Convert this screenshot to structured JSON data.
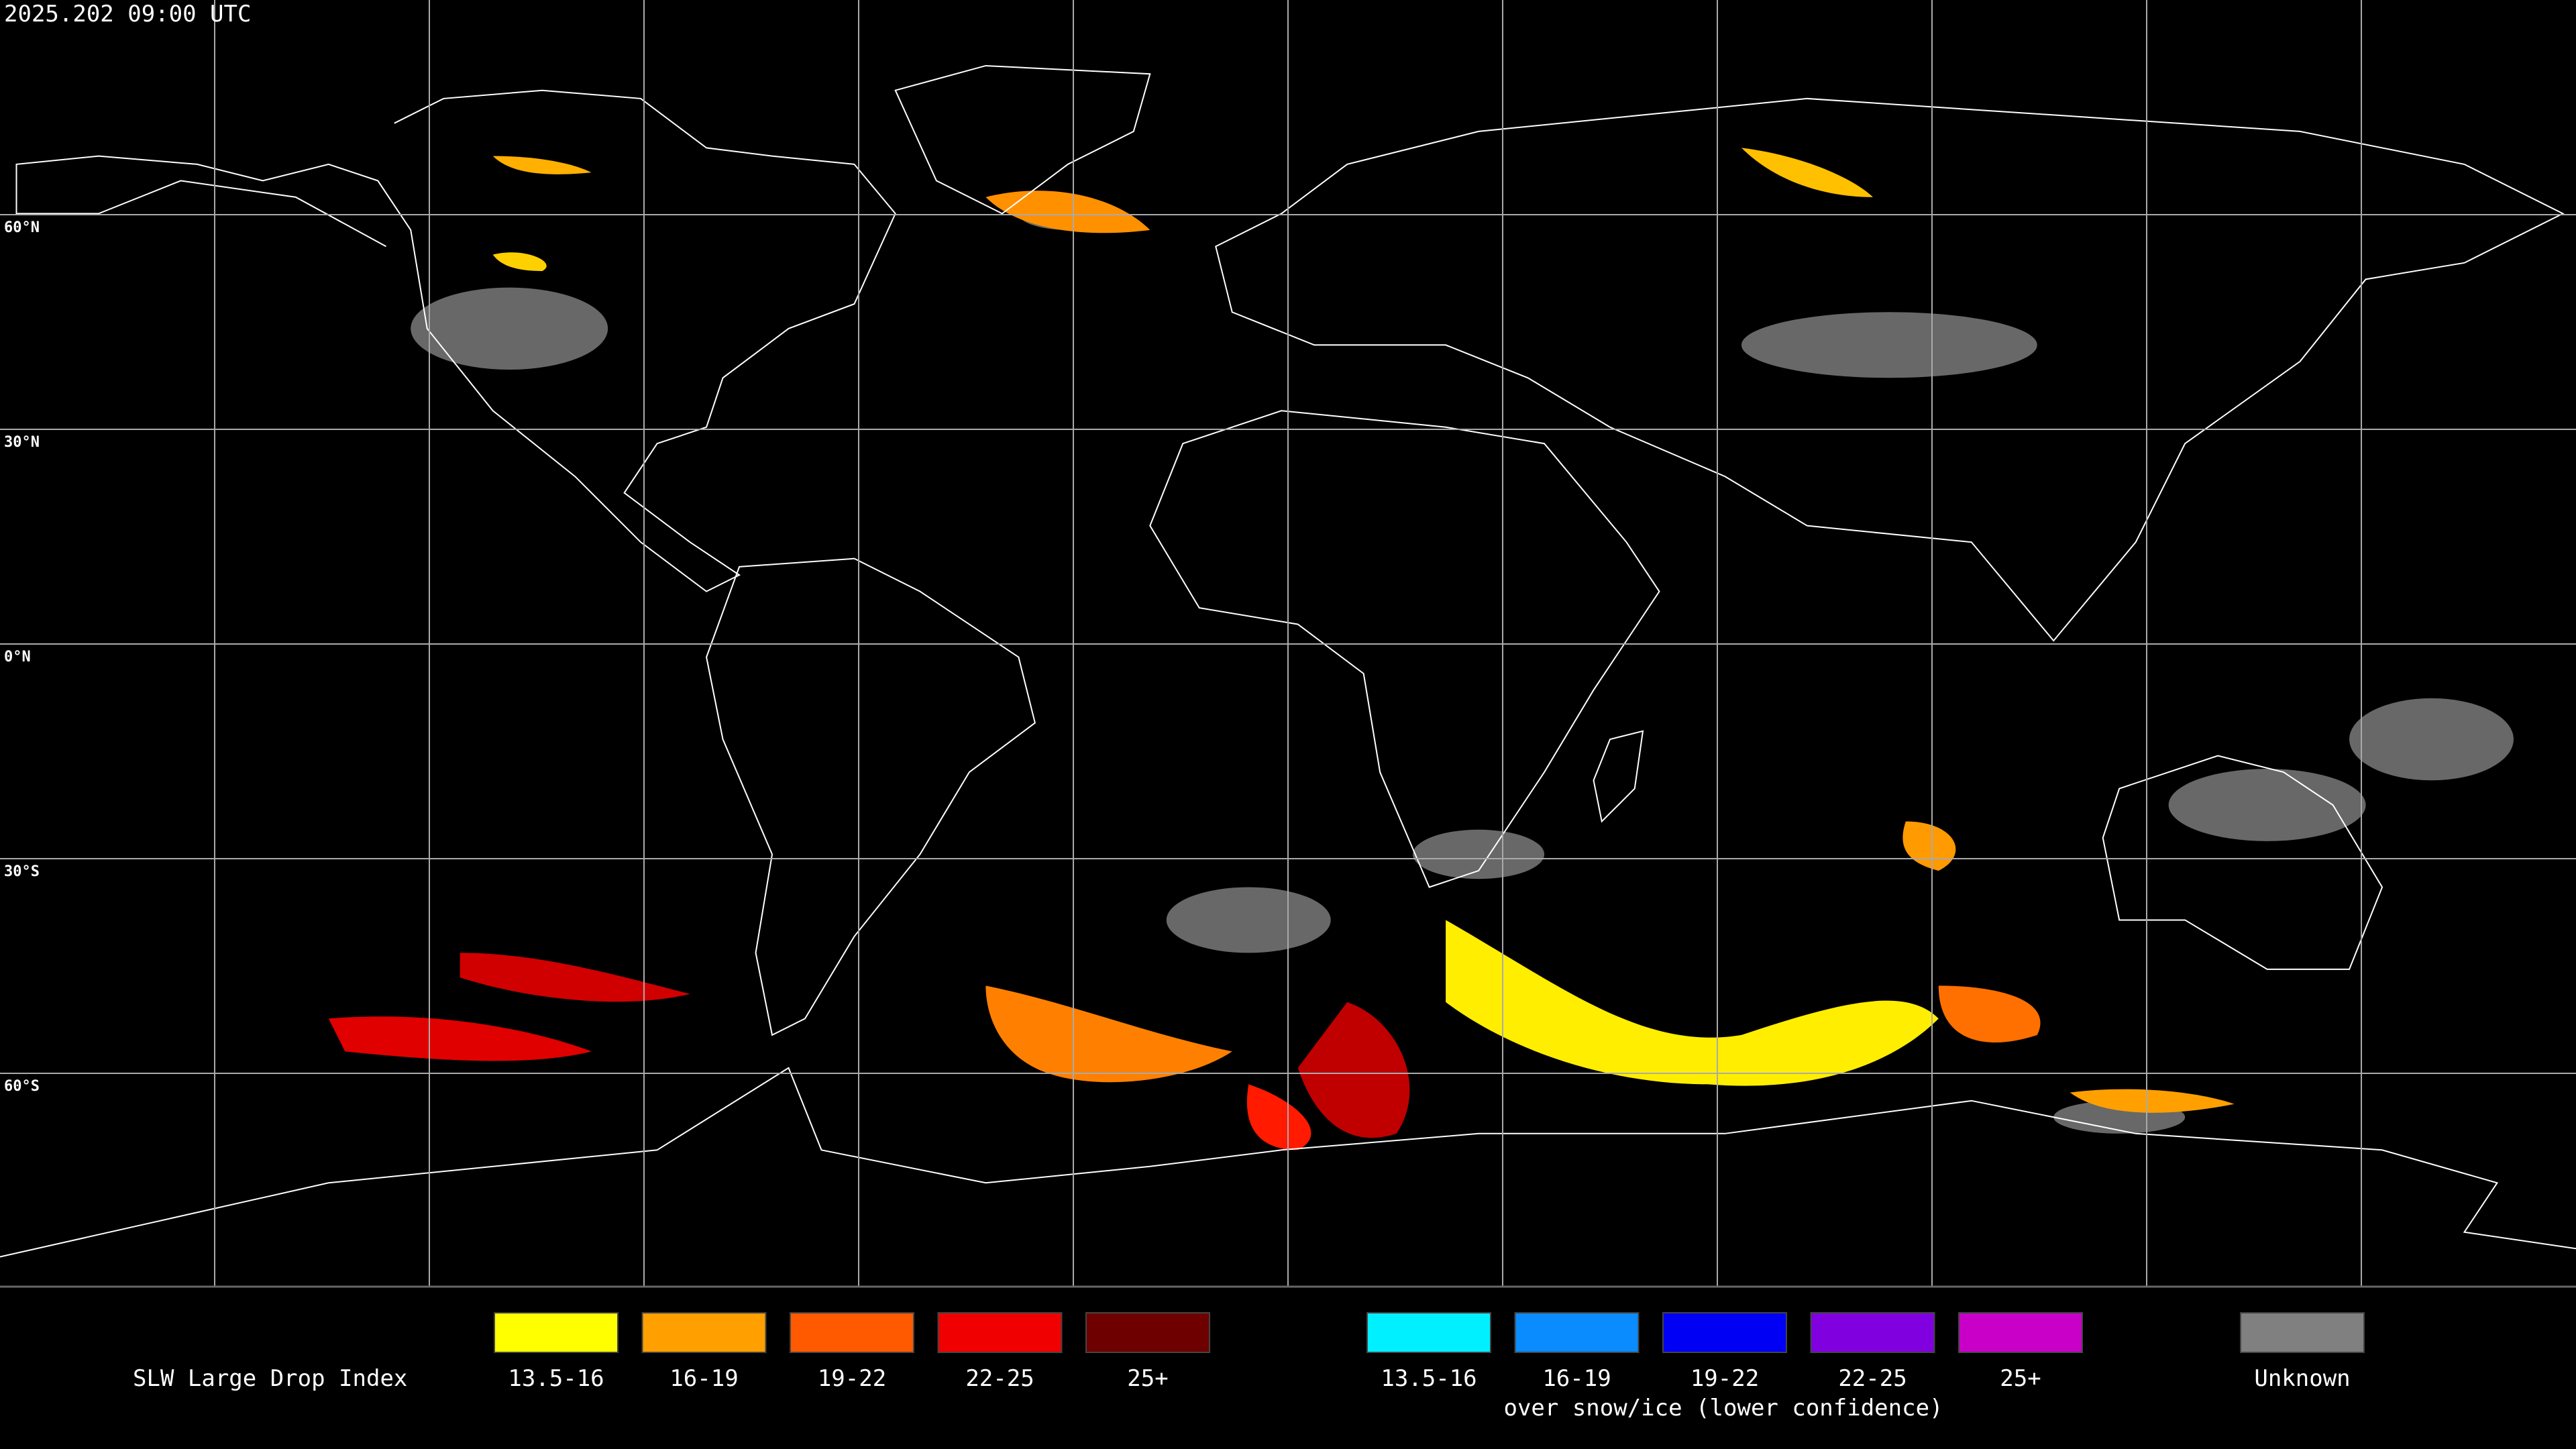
{
  "header": {
    "title": "2025.202 09:00 UTC"
  },
  "map": {
    "latitude_labels": [
      "60°N",
      "30°N",
      "0°N",
      "30°S",
      "60°S"
    ]
  },
  "legend": {
    "title": "SLW Large Drop Index",
    "items": [
      {
        "label": "13.5-16",
        "color": "#ffff00"
      },
      {
        "label": "16-19",
        "color": "#ffa000"
      },
      {
        "label": "19-22",
        "color": "#ff5a00"
      },
      {
        "label": "22-25",
        "color": "#f00000"
      },
      {
        "label": "25+",
        "color": "#6e0000"
      }
    ],
    "snow_items": [
      {
        "label": "13.5-16",
        "color": "#00f0ff"
      },
      {
        "label": "16-19",
        "color": "#0a8cff"
      },
      {
        "label": "19-22",
        "color": "#0000f5"
      },
      {
        "label": "22-25",
        "color": "#8000e0"
      },
      {
        "label": "25+",
        "color": "#c800c8"
      }
    ],
    "snow_caption": "over snow/ice (lower confidence)",
    "unknown": {
      "label": "Unknown",
      "color": "#808080"
    }
  }
}
